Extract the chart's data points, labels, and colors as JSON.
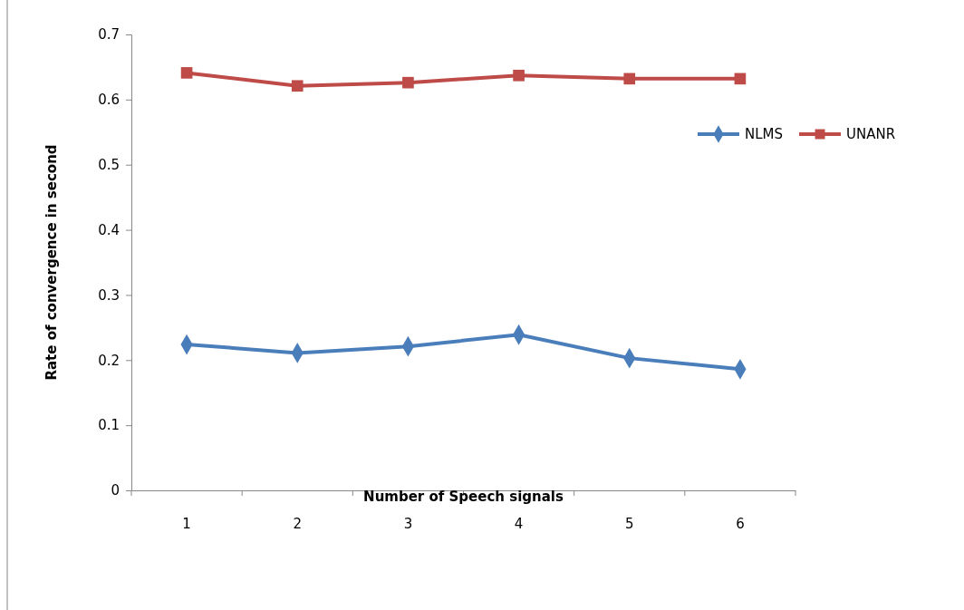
{
  "chart_data": {
    "type": "line",
    "xlabel": "Number of Speech signals",
    "ylabel": "Rate of convergence in second",
    "categories": [
      "1",
      "2",
      "3",
      "4",
      "5",
      "6"
    ],
    "series": [
      {
        "name": "NLMS",
        "color": "#4a7ebb",
        "marker": "diamond",
        "values": [
          0.224,
          0.211,
          0.221,
          0.239,
          0.203,
          0.186
        ]
      },
      {
        "name": "UNANR",
        "color": "#be4b48",
        "marker": "square",
        "values": [
          0.641,
          0.621,
          0.626,
          0.637,
          0.632,
          0.632
        ]
      }
    ],
    "ylim": [
      0,
      0.7
    ],
    "yticks": [
      {
        "value": 0,
        "label": "0"
      },
      0.1,
      0.2,
      0.3,
      0.4,
      0.5,
      0.6,
      0.7
    ],
    "grid": false,
    "legend": "right",
    "line_style": "solid"
  }
}
